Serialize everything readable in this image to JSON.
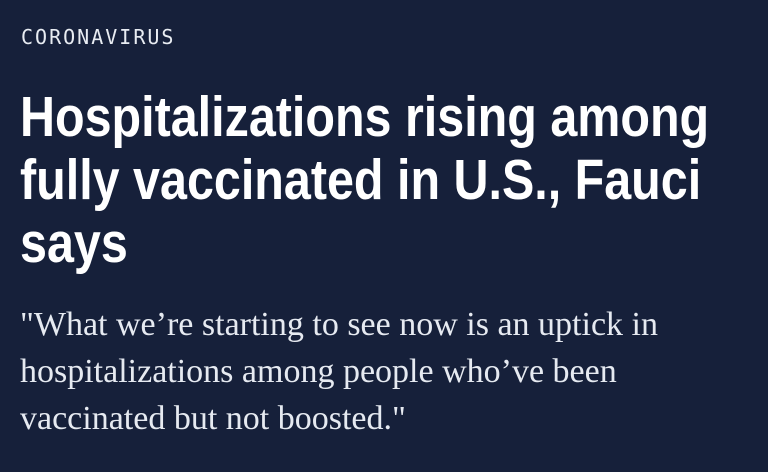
{
  "theme": {
    "background": "#16203A",
    "kicker_color": "#E8ECF2",
    "headline_color": "#FFFFFF",
    "quote_color": "#E6EAF1"
  },
  "article": {
    "kicker": "CORONAVIRUS",
    "headline_text": "Hospitalizations rising among fully vaccinated in U.S., Fauci says",
    "headline_lines": [
      "Hospitalizations rising among",
      "fully vaccinated in U.S., Fauci",
      "says"
    ],
    "quote_text": "\"What we’re starting to see now is an uptick in hospitalizations among people who’ve been vaccinated but not boosted.\"",
    "quote_lines": [
      "\"What we’re starting to see now is an uptick in",
      "hospitalizations among people who’ve been",
      "vaccinated but not boosted.\""
    ]
  }
}
